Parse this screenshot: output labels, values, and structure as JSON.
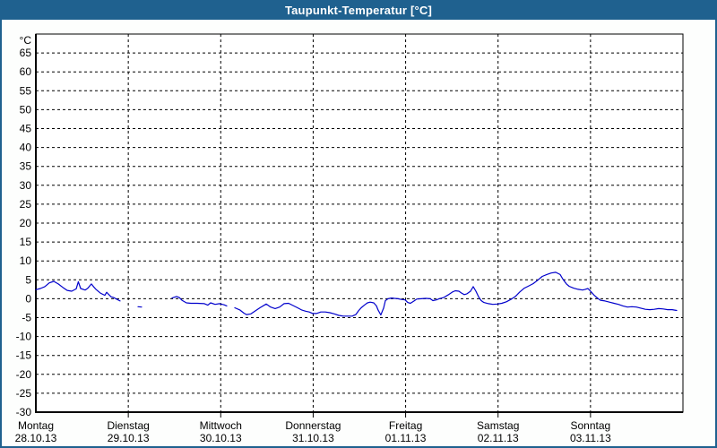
{
  "window": {
    "title": "Taupunkt-Temperatur [°C]"
  },
  "colors": {
    "titlebar_bg": "#1F618F",
    "titlebar_text": "#FFFFFF",
    "frame_border": "#1F618F",
    "page_bg": "#FDFEFD",
    "plot_bg": "#FFFFFF",
    "axis_color": "#000000",
    "grid_color": "#000000",
    "text_color": "#000000",
    "line_color": "#0000CC"
  },
  "chart_data": {
    "type": "line",
    "title": "Taupunkt-Temperatur [°C]",
    "ylabel_unit": "°C",
    "ylim": [
      -30,
      70
    ],
    "ytick_step": 5,
    "yticks": [
      65,
      60,
      55,
      50,
      45,
      40,
      35,
      30,
      25,
      20,
      15,
      10,
      5,
      0,
      -5,
      -10,
      -15,
      -20,
      -25,
      -30
    ],
    "xlim_days": [
      0,
      7
    ],
    "grid": "dashed",
    "legend_position": "none",
    "x_days": [
      {
        "name": "Montag",
        "date": "28.10.13"
      },
      {
        "name": "Dienstag",
        "date": "29.10.13"
      },
      {
        "name": "Mittwoch",
        "date": "30.10.13"
      },
      {
        "name": "Donnerstag",
        "date": "31.10.13"
      },
      {
        "name": "Freitag",
        "date": "01.11.13"
      },
      {
        "name": "Samstag",
        "date": "02.11.13"
      },
      {
        "name": "Sonntag",
        "date": "03.11.13"
      }
    ],
    "series": [
      {
        "name": "Taupunkt",
        "color": "#0000CC",
        "x_unit": "days_from_start",
        "segments": [
          [
            [
              0.0,
              2.4
            ],
            [
              0.048,
              2.7
            ],
            [
              0.097,
              3.2
            ],
            [
              0.145,
              4.2
            ],
            [
              0.194,
              4.6
            ],
            [
              0.242,
              3.9
            ],
            [
              0.291,
              3.0
            ],
            [
              0.339,
              2.2
            ],
            [
              0.388,
              2.0
            ],
            [
              0.436,
              2.6
            ],
            [
              0.46,
              4.5
            ],
            [
              0.485,
              2.7
            ],
            [
              0.533,
              2.3
            ],
            [
              0.562,
              2.8
            ],
            [
              0.601,
              3.9
            ],
            [
              0.63,
              3.0
            ],
            [
              0.65,
              2.5
            ],
            [
              0.698,
              1.5
            ],
            [
              0.747,
              0.9
            ],
            [
              0.766,
              1.7
            ],
            [
              0.785,
              1.2
            ],
            [
              0.814,
              0.5
            ],
            [
              0.843,
              0.3
            ],
            [
              0.873,
              -0.1
            ],
            [
              0.911,
              -0.6
            ]
          ],
          [
            [
              1.105,
              -2.1
            ],
            [
              1.144,
              -2.2
            ]
          ],
          [
            [
              1.474,
              0.2
            ],
            [
              1.522,
              0.6
            ],
            [
              1.551,
              0.3
            ],
            [
              1.58,
              -0.4
            ],
            [
              1.629,
              -1.1
            ],
            [
              1.677,
              -1.2
            ],
            [
              1.745,
              -1.2
            ],
            [
              1.823,
              -1.3
            ],
            [
              1.861,
              -1.7
            ],
            [
              1.891,
              -1.1
            ],
            [
              1.939,
              -1.5
            ],
            [
              1.988,
              -1.3
            ],
            [
              2.036,
              -1.6
            ],
            [
              2.065,
              -1.9
            ]
          ],
          [
            [
              2.152,
              -2.4
            ],
            [
              2.21,
              -3.0
            ],
            [
              2.249,
              -3.8
            ],
            [
              2.278,
              -4.2
            ],
            [
              2.327,
              -4.0
            ],
            [
              2.375,
              -3.2
            ],
            [
              2.424,
              -2.4
            ],
            [
              2.492,
              -1.4
            ],
            [
              2.54,
              -2.2
            ],
            [
              2.589,
              -2.6
            ],
            [
              2.637,
              -2.2
            ],
            [
              2.686,
              -1.3
            ],
            [
              2.734,
              -1.2
            ],
            [
              2.783,
              -1.8
            ],
            [
              2.831,
              -2.4
            ],
            [
              2.879,
              -3.0
            ],
            [
              2.918,
              -3.3
            ],
            [
              2.957,
              -3.5
            ],
            [
              2.996,
              -3.9
            ],
            [
              3.035,
              -3.9
            ],
            [
              3.083,
              -3.5
            ],
            [
              3.132,
              -3.5
            ],
            [
              3.18,
              -3.7
            ],
            [
              3.229,
              -4.0
            ],
            [
              3.277,
              -4.4
            ],
            [
              3.325,
              -4.6
            ],
            [
              3.374,
              -4.6
            ],
            [
              3.422,
              -4.6
            ],
            [
              3.461,
              -4.2
            ],
            [
              3.49,
              -3.2
            ],
            [
              3.519,
              -2.4
            ],
            [
              3.558,
              -1.6
            ],
            [
              3.587,
              -1.1
            ],
            [
              3.616,
              -0.9
            ],
            [
              3.655,
              -1.1
            ],
            [
              3.684,
              -1.9
            ],
            [
              3.703,
              -3.0
            ],
            [
              3.732,
              -4.3
            ],
            [
              3.762,
              -2.5
            ],
            [
              3.781,
              -0.5
            ],
            [
              3.81,
              0.0
            ],
            [
              3.849,
              0.2
            ],
            [
              3.878,
              0.1
            ],
            [
              3.917,
              0.0
            ],
            [
              3.955,
              -0.2
            ],
            [
              3.994,
              -0.3
            ],
            [
              4.023,
              -1.0
            ],
            [
              4.052,
              -1.2
            ],
            [
              4.091,
              -0.6
            ],
            [
              4.12,
              -0.1
            ],
            [
              4.169,
              0.0
            ],
            [
              4.217,
              0.1
            ],
            [
              4.266,
              0.0
            ],
            [
              4.295,
              -0.5
            ],
            [
              4.333,
              -0.3
            ],
            [
              4.362,
              0.0
            ],
            [
              4.411,
              0.3
            ],
            [
              4.459,
              1.0
            ],
            [
              4.508,
              1.8
            ],
            [
              4.537,
              2.1
            ],
            [
              4.576,
              2.0
            ],
            [
              4.605,
              1.5
            ],
            [
              4.634,
              1.1
            ],
            [
              4.663,
              1.3
            ],
            [
              4.702,
              2.0
            ],
            [
              4.731,
              3.2
            ],
            [
              4.76,
              2.0
            ],
            [
              4.789,
              0.5
            ],
            [
              4.818,
              -0.5
            ],
            [
              4.847,
              -1.0
            ],
            [
              4.896,
              -1.3
            ],
            [
              4.944,
              -1.5
            ],
            [
              4.993,
              -1.4
            ],
            [
              5.041,
              -1.2
            ],
            [
              5.09,
              -0.8
            ],
            [
              5.138,
              -0.2
            ],
            [
              5.187,
              0.6
            ],
            [
              5.235,
              1.8
            ],
            [
              5.284,
              2.8
            ],
            [
              5.332,
              3.4
            ],
            [
              5.381,
              4.0
            ],
            [
              5.429,
              4.9
            ],
            [
              5.478,
              5.9
            ],
            [
              5.526,
              6.4
            ],
            [
              5.575,
              6.8
            ],
            [
              5.623,
              7.0
            ],
            [
              5.672,
              6.4
            ],
            [
              5.701,
              5.2
            ],
            [
              5.74,
              3.9
            ],
            [
              5.769,
              3.3
            ],
            [
              5.817,
              2.8
            ],
            [
              5.866,
              2.5
            ],
            [
              5.914,
              2.3
            ],
            [
              5.943,
              2.5
            ],
            [
              5.972,
              2.7
            ],
            [
              6.011,
              1.7
            ],
            [
              6.04,
              0.9
            ],
            [
              6.079,
              0.1
            ],
            [
              6.108,
              -0.4
            ],
            [
              6.157,
              -0.6
            ],
            [
              6.205,
              -0.9
            ],
            [
              6.254,
              -1.2
            ],
            [
              6.302,
              -1.5
            ],
            [
              6.35,
              -1.9
            ],
            [
              6.399,
              -2.2
            ],
            [
              6.447,
              -2.1
            ],
            [
              6.496,
              -2.2
            ],
            [
              6.544,
              -2.5
            ],
            [
              6.593,
              -2.8
            ],
            [
              6.641,
              -2.9
            ],
            [
              6.69,
              -2.8
            ],
            [
              6.738,
              -2.6
            ],
            [
              6.787,
              -2.7
            ],
            [
              6.835,
              -2.9
            ],
            [
              6.884,
              -2.9
            ],
            [
              6.932,
              -3.1
            ]
          ]
        ]
      }
    ]
  }
}
